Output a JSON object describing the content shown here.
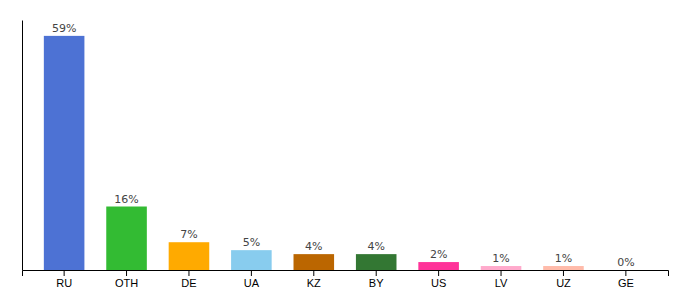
{
  "chart_data": {
    "type": "bar",
    "categories": [
      "RU",
      "OTH",
      "DE",
      "UA",
      "KZ",
      "BY",
      "US",
      "LV",
      "UZ",
      "GE"
    ],
    "values": [
      59,
      16,
      7,
      5,
      4,
      4,
      2,
      1,
      1,
      0
    ],
    "value_labels": [
      "59%",
      "16%",
      "7%",
      "5%",
      "4%",
      "4%",
      "2%",
      "1%",
      "1%",
      "0%"
    ],
    "colors": [
      "#4d72d4",
      "#33bb33",
      "#ffaa00",
      "#88ccee",
      "#bb6600",
      "#337733",
      "#ff3399",
      "#ffaacc",
      "#ffbbaa",
      "#eeeeee"
    ],
    "ylim": [
      0,
      63
    ],
    "grid": false,
    "data_labels": true,
    "tick_labels": "x"
  }
}
